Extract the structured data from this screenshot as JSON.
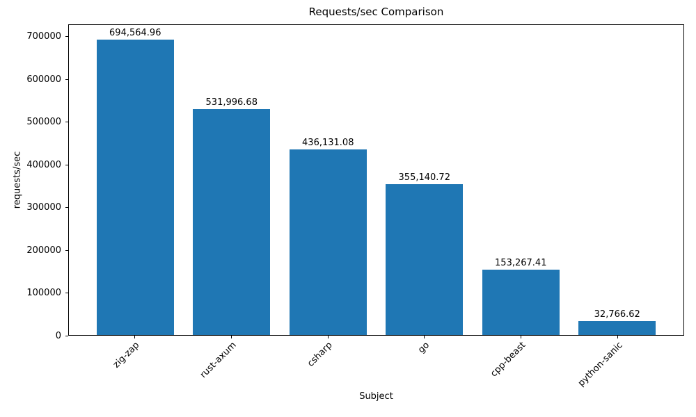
{
  "chart_data": {
    "type": "bar",
    "title": "Requests/sec Comparison",
    "xlabel": "Subject",
    "ylabel": "requests/sec",
    "categories": [
      "zig-zap",
      "rust-axum",
      "csharp",
      "go",
      "cpp-beast",
      "python-sanic"
    ],
    "values": [
      694564.96,
      531996.68,
      436131.08,
      355140.72,
      153267.41,
      32766.62
    ],
    "bar_labels": [
      "694,564.96",
      "531,996.68",
      "436,131.08",
      "355,140.72",
      "153,267.41",
      "32,766.62"
    ],
    "yticks": [
      0,
      100000,
      200000,
      300000,
      400000,
      500000,
      600000,
      700000
    ],
    "ylim": [
      0,
      729293.2
    ],
    "bar_color": "#1f77b4",
    "grid": false,
    "legend": null,
    "x_tick_rotation_deg": 45
  }
}
